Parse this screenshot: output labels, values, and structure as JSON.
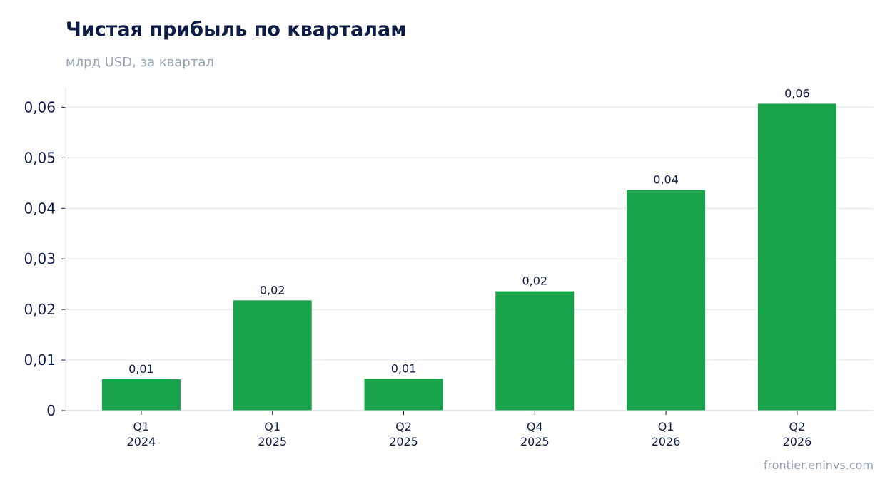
{
  "header": {
    "title": "Чистая прибыль по кварталам",
    "subtitle": "млрд USD, за квартал"
  },
  "footer": {
    "source": "frontier.eninvs.com"
  },
  "colors": {
    "bar": "#18a34a",
    "grid": "#e2e8f0",
    "axis": "#cbd5e1",
    "text": "#0e1b45",
    "muted": "#94a3b8"
  },
  "chart_data": {
    "type": "bar",
    "title": "Чистая прибыль по кварталам",
    "subtitle": "млрд USD, за квартал",
    "xlabel": "",
    "ylabel": "",
    "ylim": [
      0,
      0.064
    ],
    "yticks": [
      0,
      0.01,
      0.02,
      0.03,
      0.04,
      0.05,
      0.06
    ],
    "ytick_labels": [
      "0",
      "0,01",
      "0,02",
      "0,03",
      "0,04",
      "0,05",
      "0,06"
    ],
    "grid": true,
    "categories": [
      [
        "Q1",
        "2024"
      ],
      [
        "Q1",
        "2025"
      ],
      [
        "Q2",
        "2025"
      ],
      [
        "Q4",
        "2025"
      ],
      [
        "Q1",
        "2026"
      ],
      [
        "Q2",
        "2026"
      ]
    ],
    "values": [
      0.0062,
      0.0218,
      0.0063,
      0.0236,
      0.0436,
      0.0607
    ],
    "data_labels": [
      "0,01",
      "0,02",
      "0,01",
      "0,02",
      "0,04",
      "0,06"
    ]
  }
}
